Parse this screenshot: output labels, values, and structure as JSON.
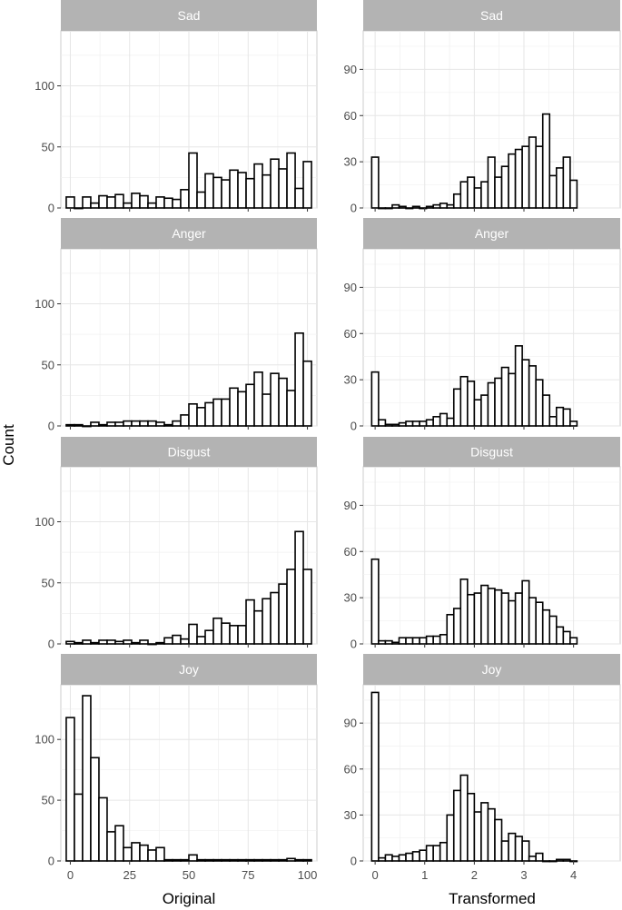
{
  "chart_data": {
    "type": "histogram-facets",
    "ylabel": "Count",
    "columns": [
      {
        "xlabel": "Original",
        "xlim": [
          -4,
          104
        ],
        "xticks": [
          0,
          25,
          50,
          75,
          100
        ],
        "tick_labels": [
          "0",
          "25",
          "50",
          "75",
          "100"
        ],
        "ylim": [
          0,
          145
        ],
        "yticks": [
          0,
          50,
          100
        ],
        "ytick_labels": [
          "0",
          "50",
          "100"
        ],
        "bin_width": 3.33,
        "panels": [
          {
            "name": "Sad",
            "values": [
              9,
              0,
              9,
              4,
              10,
              9,
              11,
              4,
              12,
              10,
              4,
              9,
              8,
              7,
              15,
              45,
              13,
              28,
              25,
              23,
              31,
              29,
              24,
              36,
              27,
              40,
              32,
              45,
              16,
              38
            ]
          },
          {
            "name": "Anger",
            "values": [
              1,
              1,
              0,
              3,
              1,
              3,
              3,
              4,
              4,
              4,
              4,
              3,
              1,
              4,
              9,
              18,
              15,
              19,
              22,
              22,
              31,
              28,
              34,
              44,
              26,
              43,
              39,
              29,
              76,
              53
            ]
          },
          {
            "name": "Disgust",
            "values": [
              2,
              1,
              3,
              1,
              3,
              3,
              2,
              3,
              1,
              3,
              0,
              1,
              5,
              7,
              4,
              16,
              6,
              11,
              21,
              17,
              15,
              15,
              36,
              27,
              37,
              42,
              49,
              61,
              92,
              61
            ]
          },
          {
            "name": "Joy",
            "values": [
              118,
              55,
              136,
              85,
              52,
              24,
              29,
              11,
              15,
              13,
              9,
              11,
              1,
              1,
              1,
              5,
              1,
              1,
              1,
              1,
              1,
              1,
              1,
              1,
              1,
              1,
              1,
              2,
              1,
              1
            ]
          }
        ]
      },
      {
        "xlabel": "Transformed",
        "xlim": [
          -0.24,
          4.94
        ],
        "xticks": [
          0,
          1,
          2,
          3,
          4
        ],
        "tick_labels": [
          "0",
          "1",
          "2",
          "3",
          "4"
        ],
        "ylim": [
          0,
          115
        ],
        "yticks": [
          0,
          30,
          60,
          90
        ],
        "ytick_labels": [
          "0",
          "30",
          "60",
          "90"
        ],
        "bin_width": 0.16,
        "panels": [
          {
            "name": "Sad",
            "values": [
              33,
              0,
              0,
              2,
              1,
              0,
              1,
              0,
              1,
              2,
              3,
              2,
              9,
              17,
              20,
              13,
              17,
              33,
              20,
              27,
              35,
              38,
              40,
              46,
              40,
              61,
              21,
              26,
              33,
              18
            ]
          },
          {
            "name": "Anger",
            "values": [
              35,
              4,
              1,
              1,
              2,
              3,
              3,
              3,
              4,
              6,
              8,
              5,
              24,
              32,
              29,
              17,
              20,
              28,
              31,
              38,
              34,
              52,
              43,
              39,
              30,
              20,
              6,
              12,
              11,
              3
            ]
          },
          {
            "name": "Disgust",
            "values": [
              55,
              2,
              2,
              1,
              4,
              4,
              4,
              4,
              5,
              5,
              6,
              19,
              23,
              42,
              32,
              33,
              38,
              36,
              35,
              33,
              28,
              33,
              41,
              30,
              27,
              22,
              18,
              11,
              8,
              4
            ]
          },
          {
            "name": "Joy",
            "values": [
              110,
              2,
              4,
              3,
              4,
              5,
              6,
              7,
              10,
              10,
              12,
              30,
              46,
              56,
              44,
              32,
              38,
              34,
              27,
              13,
              18,
              16,
              13,
              3,
              5,
              0,
              0,
              1,
              1,
              0
            ]
          }
        ]
      }
    ]
  }
}
